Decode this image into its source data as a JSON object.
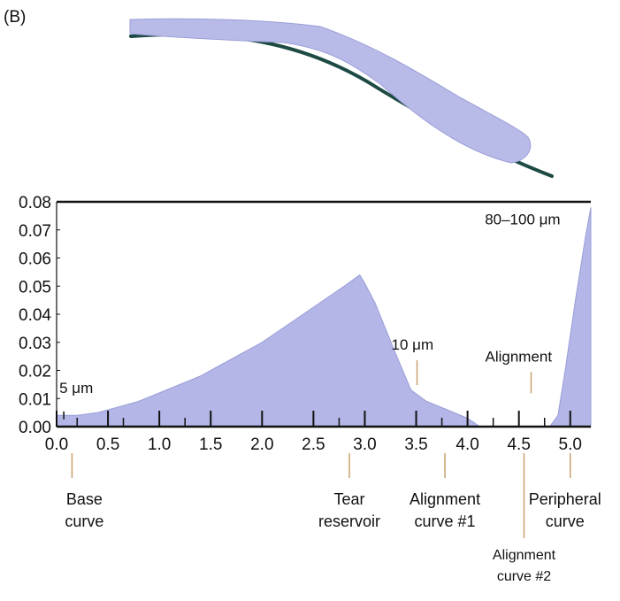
{
  "panel_label": "(B)",
  "colors": {
    "fill": "#b3b6e6",
    "fill_edge": "#9a9ed8",
    "lens": "#b8bbe8",
    "cornea": "#1e4a44",
    "axis": "#111111",
    "pointer": "#c8a070"
  },
  "chart_data": {
    "type": "area",
    "xlim": [
      0.0,
      5.2
    ],
    "ylim": [
      0.0,
      0.08
    ],
    "xticks": [
      "0.0",
      "0.5",
      "1.0",
      "1.5",
      "2.0",
      "2.5",
      "3.0",
      "3.5",
      "4.0",
      "4.5",
      "5.0"
    ],
    "yticks": [
      "0.00",
      "0.01",
      "0.02",
      "0.03",
      "0.04",
      "0.05",
      "0.06",
      "0.07",
      "0.08"
    ],
    "grid": false,
    "series": [
      {
        "x": [
          0.0,
          0.2,
          0.4,
          0.6,
          0.8,
          1.0,
          1.2,
          1.4,
          1.6,
          1.8,
          2.0,
          2.2,
          2.4,
          2.6,
          2.8,
          2.95,
          3.0,
          3.1,
          3.2,
          3.3,
          3.45,
          3.6,
          3.8,
          4.0,
          4.12,
          4.8,
          4.88,
          4.95,
          5.05,
          5.15,
          5.2
        ],
        "y": [
          0.004,
          0.004,
          0.005,
          0.007,
          0.009,
          0.012,
          0.015,
          0.018,
          0.022,
          0.026,
          0.03,
          0.035,
          0.04,
          0.045,
          0.05,
          0.054,
          0.051,
          0.044,
          0.035,
          0.026,
          0.013,
          0.009,
          0.006,
          0.003,
          0.0,
          0.0,
          0.004,
          0.02,
          0.045,
          0.068,
          0.078
        ]
      }
    ],
    "minor_ticks": [
      0.2,
      0.65,
      1.25,
      2.75,
      3.75,
      4.25,
      4.75
    ],
    "annotations": [
      {
        "text": "5 μm",
        "x": 0.07,
        "y": 0.007
      },
      {
        "text": "10 μm",
        "x": 3.5,
        "y": 0.011
      },
      {
        "text": "Alignment",
        "x": 4.55,
        "y": 0.01
      },
      {
        "text": "80–100 μm",
        "x": 5.15,
        "y": 0.078
      }
    ],
    "callouts": [
      {
        "lines": [
          "Base",
          "curve"
        ],
        "x": 0.15
      },
      {
        "lines": [
          "Tear",
          "reservoir"
        ],
        "x": 2.85
      },
      {
        "lines": [
          "Alignment",
          "curve #1"
        ],
        "x": 3.78
      },
      {
        "lines": [
          "Alignment",
          "curve #2"
        ],
        "x": 4.55
      },
      {
        "lines": [
          "Peripheral",
          "curve"
        ],
        "x": 5.0
      }
    ]
  }
}
